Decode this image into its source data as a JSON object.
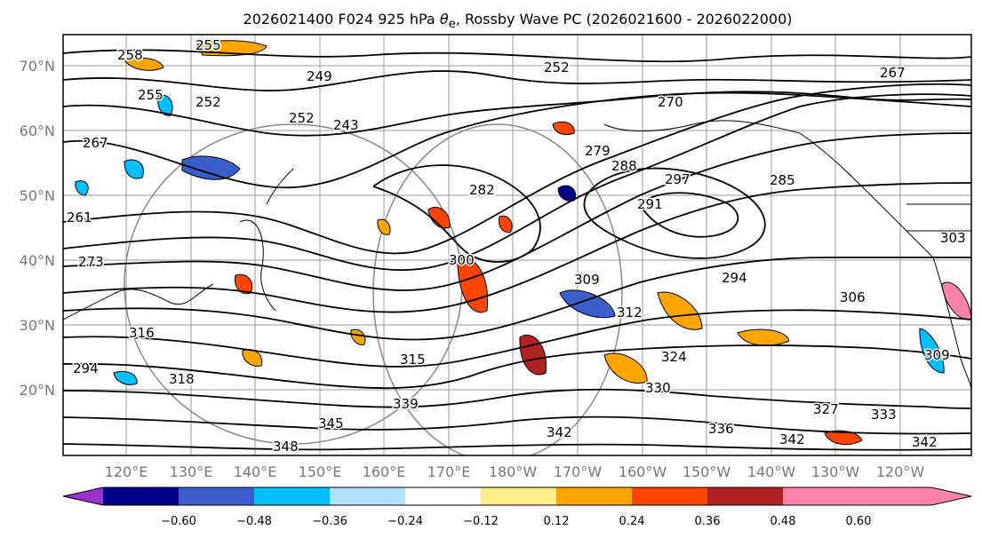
{
  "title": {
    "prefix": "2026021400 F024 925 hPa ",
    "symbol": "θ",
    "subscript": "e",
    "suffix": ", Rossby Wave PC (2026021600 - 2026022000)"
  },
  "axes": {
    "lat_labels": [
      "70°N",
      "60°N",
      "50°N",
      "40°N",
      "30°N",
      "20°N"
    ],
    "lon_labels": [
      "120°E",
      "130°E",
      "140°E",
      "150°E",
      "160°E",
      "170°E",
      "180°W",
      "170°W",
      "160°W",
      "150°W",
      "140°W",
      "130°W",
      "120°W"
    ]
  },
  "contour_labels": [
    "258",
    "255",
    "249",
    "252",
    "255",
    "252",
    "267",
    "261",
    "243",
    "252",
    "270",
    "282",
    "279",
    "297",
    "285",
    "291",
    "288",
    "294",
    "273",
    "300",
    "306",
    "309",
    "312",
    "316",
    "324",
    "315",
    "318",
    "330",
    "327",
    "333",
    "336",
    "339",
    "342",
    "342",
    "342",
    "345",
    "348",
    "303",
    "309",
    "267",
    "294"
  ],
  "colorbar": {
    "colors": [
      "#9932CC",
      "#00008B",
      "#3A5FCD",
      "#00BFFF",
      "#B0E2FF",
      "#FFFFFF",
      "#FFEC8B",
      "#FFA500",
      "#FF4500",
      "#B22222",
      "#FF82AB"
    ],
    "ticks": [
      "−0.60",
      "−0.48",
      "−0.36",
      "−0.24",
      "−0.12",
      "0.12",
      "0.24",
      "0.36",
      "0.48",
      "0.60"
    ]
  },
  "palette": {
    "map_border": "#000000",
    "grid": "#999999",
    "coast": "#000000"
  }
}
